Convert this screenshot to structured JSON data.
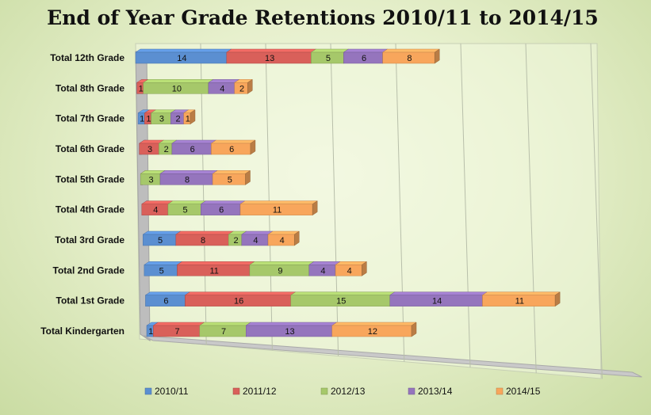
{
  "chart_data": {
    "type": "bar",
    "orientation": "horizontal",
    "stacked": true,
    "three_d": true,
    "title": "End of Year Grade Retentions 2010/11 to 2014/15",
    "legend_position": "bottom",
    "gridlines": true,
    "xlim": [
      0,
      70
    ],
    "categories": [
      "Total 12th Grade",
      "Total 8th Grade",
      "Total 7th Grade",
      "Total 6th Grade",
      "Total 5th Grade",
      "Total 4th Grade",
      "Total 3rd Grade",
      "Total 2nd Grade",
      "Total 1st Grade",
      "Total Kindergarten"
    ],
    "series": [
      {
        "name": "2010/11",
        "color": "#5b8fd1",
        "values": [
          14,
          0,
          1,
          0,
          0,
          0,
          5,
          5,
          6,
          1
        ]
      },
      {
        "name": "2011/12",
        "color": "#d9605a",
        "values": [
          13,
          1,
          1,
          3,
          0,
          4,
          8,
          11,
          16,
          7
        ]
      },
      {
        "name": "2012/13",
        "color": "#a6c86a",
        "values": [
          5,
          10,
          3,
          2,
          3,
          5,
          2,
          9,
          15,
          7
        ]
      },
      {
        "name": "2013/14",
        "color": "#9575bd",
        "values": [
          6,
          4,
          2,
          6,
          8,
          6,
          4,
          4,
          14,
          13
        ]
      },
      {
        "name": "2014/15",
        "color": "#f8a65c",
        "values": [
          8,
          2,
          1,
          6,
          5,
          11,
          4,
          4,
          11,
          12
        ]
      }
    ]
  }
}
